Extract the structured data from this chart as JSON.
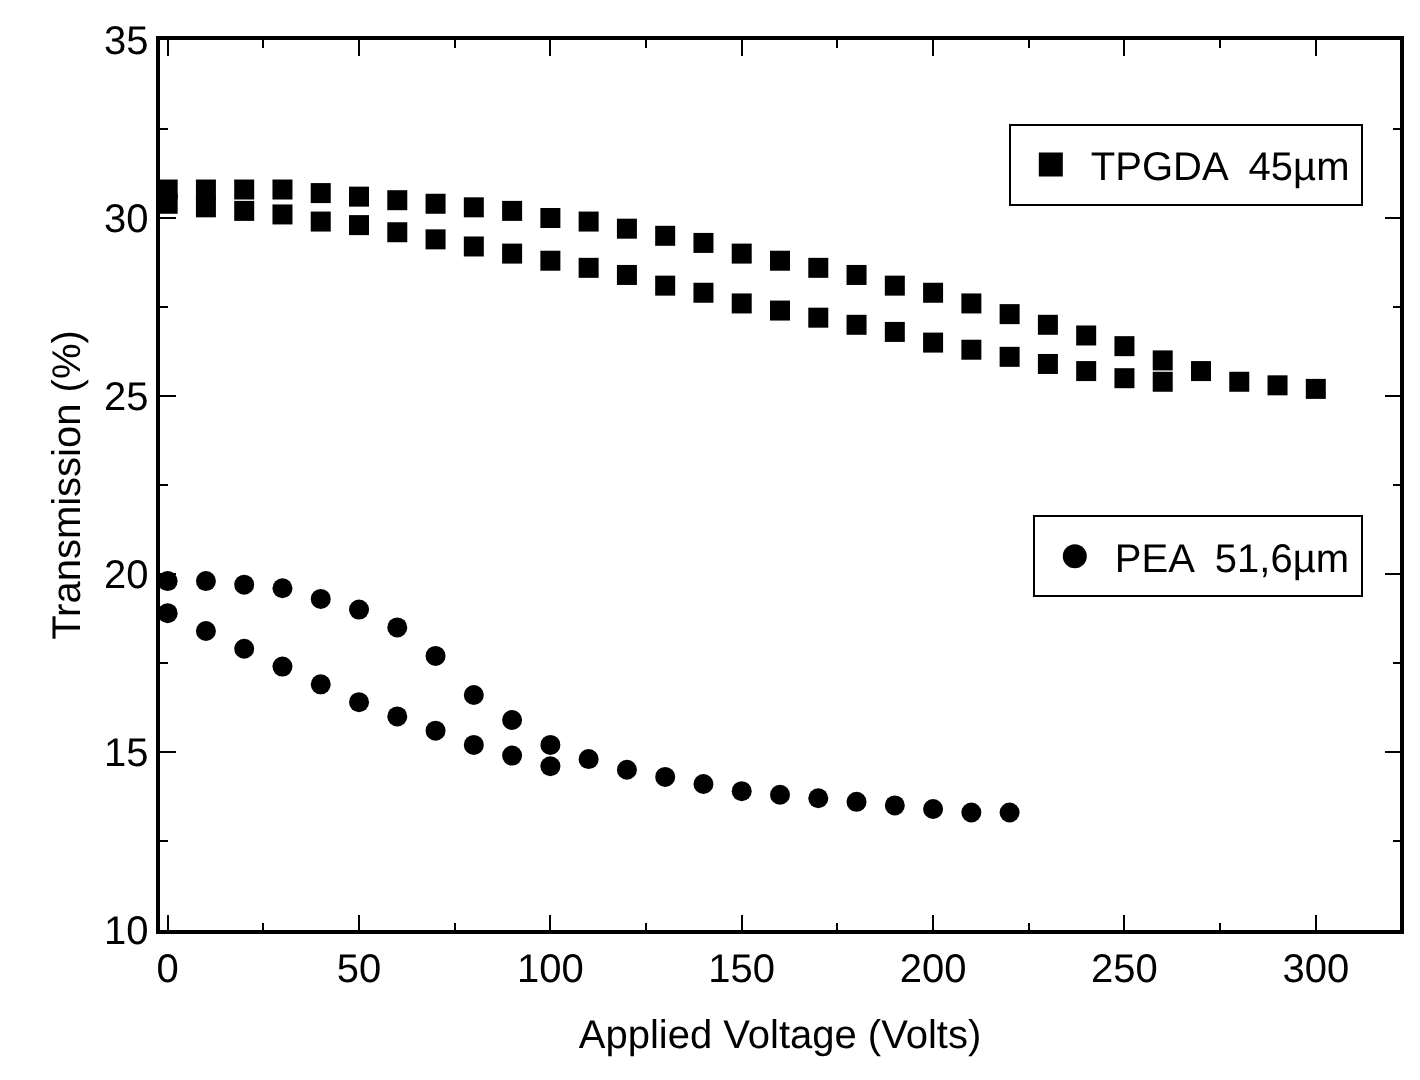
{
  "chart_data": {
    "type": "scatter",
    "xlabel": "Applied Voltage (Volts)",
    "ylabel": "Transmission (%)",
    "xlim": [
      -2,
      322
    ],
    "xticks": [
      0,
      50,
      100,
      150,
      200,
      250,
      300
    ],
    "ylim": [
      10,
      35
    ],
    "yticks": [
      10,
      15,
      20,
      25,
      30,
      35
    ],
    "legend": "right",
    "series": [
      {
        "name": "TPGDA  45µm",
        "color": "#000000",
        "marker": "square",
        "x": [
          0,
          10,
          20,
          30,
          40,
          50,
          60,
          70,
          80,
          90,
          100,
          110,
          120,
          130,
          140,
          150,
          160,
          170,
          180,
          190,
          200,
          210,
          220,
          230,
          240,
          250,
          260,
          270,
          280,
          290,
          300,
          260,
          250,
          240,
          230,
          220,
          210,
          200,
          190,
          180,
          170,
          160,
          150,
          140,
          130,
          120,
          110,
          100,
          90,
          80,
          70,
          60,
          50,
          40,
          30,
          20,
          10,
          0
        ],
        "values": [
          30.8,
          30.8,
          30.8,
          30.8,
          30.7,
          30.6,
          30.5,
          30.4,
          30.3,
          30.2,
          30.0,
          29.9,
          29.7,
          29.5,
          29.3,
          29.0,
          28.8,
          28.6,
          28.4,
          28.1,
          27.9,
          27.6,
          27.3,
          27.0,
          26.7,
          26.4,
          26.0,
          25.7,
          25.4,
          25.3,
          25.2,
          25.4,
          25.5,
          25.7,
          25.9,
          26.1,
          26.3,
          26.5,
          26.8,
          27.0,
          27.2,
          27.4,
          27.6,
          27.9,
          28.1,
          28.4,
          28.6,
          28.8,
          29.0,
          29.2,
          29.4,
          29.6,
          29.8,
          29.9,
          30.1,
          30.2,
          30.3,
          30.4
        ]
      },
      {
        "name": "PEA  51,6µm",
        "color": "#000000",
        "marker": "circle",
        "x": [
          0,
          10,
          20,
          30,
          40,
          50,
          60,
          70,
          80,
          90,
          100,
          110,
          120,
          130,
          140,
          150,
          160,
          170,
          180,
          190,
          200,
          210,
          220,
          100,
          90,
          80,
          70,
          60,
          50,
          40,
          30,
          20,
          10,
          0
        ],
        "values": [
          19.8,
          19.8,
          19.7,
          19.6,
          19.3,
          19.0,
          18.5,
          17.7,
          16.6,
          15.9,
          15.2,
          14.8,
          14.5,
          14.3,
          14.1,
          13.9,
          13.8,
          13.7,
          13.6,
          13.5,
          13.4,
          13.3,
          13.3,
          14.6,
          14.9,
          15.2,
          15.6,
          16.0,
          16.4,
          16.9,
          17.4,
          17.9,
          18.4,
          18.9
        ]
      }
    ]
  }
}
